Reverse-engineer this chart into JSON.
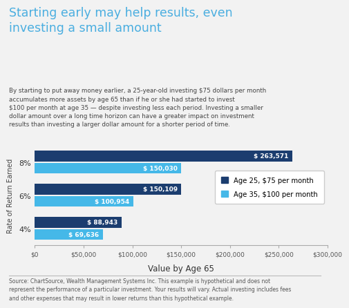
{
  "title": "Starting early may help results, even\ninvesting a small amount",
  "subtitle": "By starting to put away money earlier, a 25-year-old investing $75 dollars per month\naccumulates more assets by age 65 than if he or she had started to invest\n$100 per month at age 35 — despite investing less each period. Investing a smaller\ndollar amount over a long time horizon can have a greater impact on investment\nresults than investing a larger dollar amount for a shorter period of time.",
  "source": "Source: ChartSource, Wealth Management Systems Inc. This example is hypothetical and does not\nrepresent the performance of a particular investment. Your results will vary. Actual investing includes fees\nand other expenses that may result in lower returns than this hypothetical example.",
  "categories": [
    "8%",
    "6%",
    "4%"
  ],
  "age25_values": [
    263571,
    150109,
    88943
  ],
  "age35_values": [
    150030,
    100954,
    69636
  ],
  "age25_labels": [
    "$ 263,571",
    "$ 150,109",
    "$ 88,943"
  ],
  "age35_labels": [
    "$ 150,030",
    "$ 100,954",
    "$ 69,636"
  ],
  "color_age25": "#1b3d6f",
  "color_age35": "#45b8e8",
  "xlabel": "Value by Age 65",
  "ylabel": "Rate of Return Earned",
  "xlim": [
    0,
    300000
  ],
  "xticks": [
    0,
    50000,
    100000,
    150000,
    200000,
    250000,
    300000
  ],
  "xtick_labels": [
    "$0",
    "$50,000",
    "$100,000",
    "$150,000",
    "$200,000",
    "$250,000",
    "$300,000"
  ],
  "legend_label_25": "Age 25, $75 per month",
  "legend_label_35": "Age 35, $100 per month",
  "bg_color": "#f2f2f2",
  "title_color": "#4aaee0",
  "subtitle_color": "#444444",
  "source_color": "#555555",
  "bar_height": 0.32
}
